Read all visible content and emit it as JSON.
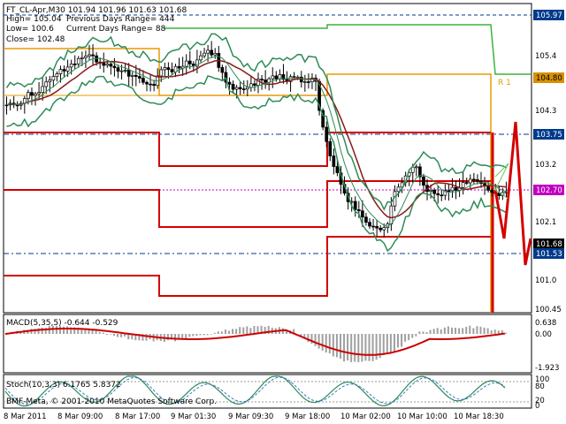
{
  "header": {
    "symbol_line": "FT_CL-Apr,M30  101.94 101.96 101.63 101.68",
    "high_label": "High= 105.04",
    "prev_range_label": "Previous Days Range= 444",
    "low_label": "Low= 100.6",
    "curr_range_label": "Current Days Range= 88",
    "close_label": "Close= 102.48"
  },
  "price_axis": {
    "ticks": [
      "105.4",
      "104.3",
      "103.2",
      "102.1",
      "101.0",
      "100.45"
    ],
    "tags": [
      {
        "value": "105.97",
        "bg": "#003a8c",
        "fg": "#ffffff"
      },
      {
        "value": "104.80",
        "bg": "#d98f00",
        "fg": "#000000"
      },
      {
        "value": "103.75",
        "bg": "#003a8c",
        "fg": "#ffffff"
      },
      {
        "value": "102.70",
        "bg": "#c000c0",
        "fg": "#ffffff"
      },
      {
        "value": "101.68",
        "bg": "#000000",
        "fg": "#ffffff"
      },
      {
        "value": "101.53",
        "bg": "#003a8c",
        "fg": "#ffffff"
      }
    ],
    "r_label": "R 1"
  },
  "macd": {
    "label": "MACD(5,35,5) -0.644 -0.529",
    "ticks": [
      "0.638",
      "0.00",
      "-1.923"
    ]
  },
  "stoch": {
    "label": "Stoch(10,3,3) 6.1765 5.8372",
    "ticks": [
      "100",
      "80",
      "20",
      "0"
    ]
  },
  "copyright": "BMF-Meta, © 2001-2010 MetaQuotes Software Corp.",
  "time_axis": [
    "8 Mar 2011",
    "8 Mar 09:00",
    "8 Mar 17:00",
    "9 Mar 01:30",
    "9 Mar 09:30",
    "9 Mar 18:00",
    "10 Mar 02:00",
    "10 Mar 10:00",
    "10 Mar 18:30"
  ],
  "colors": {
    "bollinger": "#2e8b57",
    "ma": "#8b1a1a",
    "red_levels": "#d40000",
    "green_levels": "#3cb43c",
    "orange_levels": "#e89a00",
    "macd_signal": "#cc0000",
    "macd_hist": "#a0a0a0",
    "stoch_main": "#2e8b57",
    "stoch_signal": "#3a78c8"
  }
}
